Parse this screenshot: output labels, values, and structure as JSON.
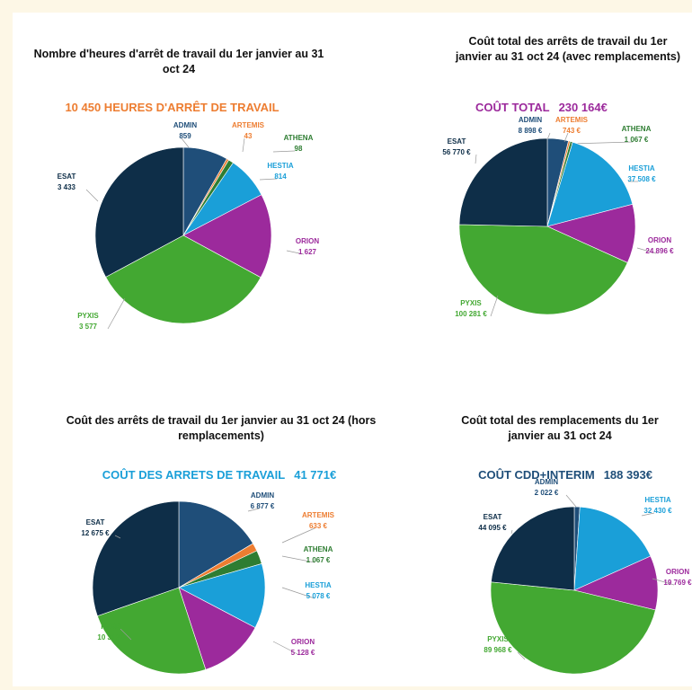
{
  "colors": {
    "ADMIN": "#1f4e79",
    "ARTEMIS": "#ed7d31",
    "ATHENA": "#2e7d32",
    "HESTIA": "#1a9fd8",
    "ORION": "#9c2a9c",
    "PYXIS": "#43a832",
    "ESAT": "#0e2e48"
  },
  "chart_data": [
    {
      "type": "pie",
      "title": "Nombre d'heures d'arrêt de travail du 1er janvier au 31 oct 24",
      "headline": {
        "label": "10 450 HEURES D'ARRÊT DE TRAVAIL",
        "value": "",
        "label_color": "#ed7d31",
        "value_color": "#ed7d31"
      },
      "slices": [
        {
          "name": "ADMIN",
          "value": 859,
          "label": "859"
        },
        {
          "name": "ARTEMIS",
          "value": 43,
          "label": "43"
        },
        {
          "name": "ATHENA",
          "value": 98,
          "label": "98"
        },
        {
          "name": "HESTIA",
          "value": 814,
          "label": "814"
        },
        {
          "name": "ORION",
          "value": 1627,
          "label": "1 627"
        },
        {
          "name": "PYXIS",
          "value": 3577,
          "label": "3 577"
        },
        {
          "name": "ESAT",
          "value": 3433,
          "label": "3 433"
        }
      ]
    },
    {
      "type": "pie",
      "title": "Coût total des arrêts de travail du 1er janvier au 31 oct 24 (avec remplacements)",
      "headline": {
        "label": "COÛT TOTAL",
        "value": "230 164€",
        "label_color": "#9c2a9c",
        "value_color": "#9c2a9c"
      },
      "slices": [
        {
          "name": "ADMIN",
          "value": 8898,
          "label": "8 898 €"
        },
        {
          "name": "ARTEMIS",
          "value": 743,
          "label": "743 €"
        },
        {
          "name": "ATHENA",
          "value": 1067,
          "label": "1 067 €"
        },
        {
          "name": "HESTIA",
          "value": 37508,
          "label": "37 508 €"
        },
        {
          "name": "ORION",
          "value": 24896,
          "label": "24 896 €"
        },
        {
          "name": "PYXIS",
          "value": 100281,
          "label": "100 281 €"
        },
        {
          "name": "ESAT",
          "value": 56770,
          "label": "56 770 €"
        }
      ]
    },
    {
      "type": "pie",
      "title": "Coût des arrêts de travail du 1er janvier au 31 oct 24 (hors remplacements)",
      "headline": {
        "label": "COÛT DES ARRETS DE TRAVAIL",
        "value": "41 771€",
        "label_color": "#1a9fd8",
        "value_color": "#1a9fd8"
      },
      "slices": [
        {
          "name": "ADMIN",
          "value": 6877,
          "label": "6 877 €"
        },
        {
          "name": "ARTEMIS",
          "value": 633,
          "label": "633 €"
        },
        {
          "name": "ATHENA",
          "value": 1067,
          "label": "1 067 €"
        },
        {
          "name": "HESTIA",
          "value": 5078,
          "label": "5 078 €"
        },
        {
          "name": "ORION",
          "value": 5128,
          "label": "5 128 €"
        },
        {
          "name": "PYXIS",
          "value": 10313,
          "label": "10 313 €"
        },
        {
          "name": "ESAT",
          "value": 12675,
          "label": "12 675 €"
        }
      ]
    },
    {
      "type": "pie",
      "title": "Coût total des remplacements du 1er janvier au 31 oct 24",
      "headline": {
        "label": "COÛT CDD+INTERIM",
        "value": "188 393€",
        "label_color": "#1f4e79",
        "value_color": "#1f4e79"
      },
      "slices": [
        {
          "name": "ADMIN",
          "value": 2022,
          "label": "2 022 €"
        },
        {
          "name": "HESTIA",
          "value": 32430,
          "label": "32 430 €"
        },
        {
          "name": "ORION",
          "value": 19769,
          "label": "19 769 €"
        },
        {
          "name": "PYXIS",
          "value": 89968,
          "label": "89 968 €"
        },
        {
          "name": "ESAT",
          "value": 44095,
          "label": "44 095 €"
        }
      ]
    }
  ]
}
